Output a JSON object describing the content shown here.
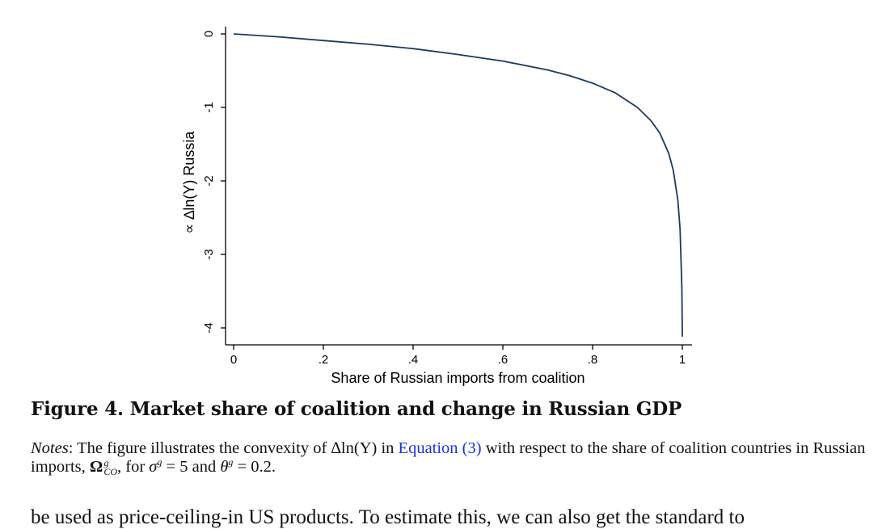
{
  "chart_data": {
    "type": "line",
    "title": "",
    "xlabel": "Share of Russian imports from coalition",
    "ylabel": "∝ ∆ln(Y) Russia",
    "xlim": [
      0,
      1
    ],
    "ylim": [
      -4.12,
      0
    ],
    "x_ticks": [
      0,
      0.2,
      0.4,
      0.6,
      0.8,
      1
    ],
    "x_tick_labels": [
      "0",
      ".2",
      ".4",
      ".6",
      ".8",
      "1"
    ],
    "y_ticks": [
      0,
      -1,
      -2,
      -3,
      -4
    ],
    "y_tick_labels": [
      "0",
      "-1",
      "-2",
      "-3",
      "-4"
    ],
    "grid": false,
    "legend": "none",
    "line_color": "#1b3a5c",
    "series": [
      {
        "x": [
          0,
          0.1,
          0.2,
          0.3,
          0.4,
          0.5,
          0.6,
          0.7,
          0.75,
          0.8,
          0.85,
          0.9,
          0.93,
          0.95,
          0.97,
          0.98,
          0.99,
          0.995,
          0.999,
          1
        ],
        "values": [
          0,
          -0.04,
          -0.09,
          -0.14,
          -0.2,
          -0.28,
          -0.37,
          -0.49,
          -0.57,
          -0.67,
          -0.8,
          -1.0,
          -1.18,
          -1.35,
          -1.63,
          -1.86,
          -2.26,
          -2.66,
          -3.46,
          -4.12
        ]
      }
    ]
  },
  "caption": {
    "title": "Figure 4. Market share of coalition and change in Russian GDP"
  },
  "notes": {
    "label": "Notes",
    "text_1": ": The figure illustrates the convexity of ",
    "delta_ln_y": "∆ln(Υ)",
    "text_2": " in ",
    "equation_link": "Equation (3)",
    "text_3": " with respect to the share of coalition countries in Russian imports, ",
    "omega": "Ω",
    "omega_sup": "g",
    "omega_sub": "CO",
    "text_4": ", for ",
    "sigma_expr": "σ",
    "sigma_sup": "g",
    "sigma_eq": " = 5",
    "text_5": " and ",
    "theta_expr": "θ",
    "theta_sup": "g",
    "theta_eq": " = 0.2",
    "text_6": "."
  },
  "body_text": {
    "cut_line": "be used as price-ceiling-in US products. To estimate this, we can also get the standard to"
  }
}
